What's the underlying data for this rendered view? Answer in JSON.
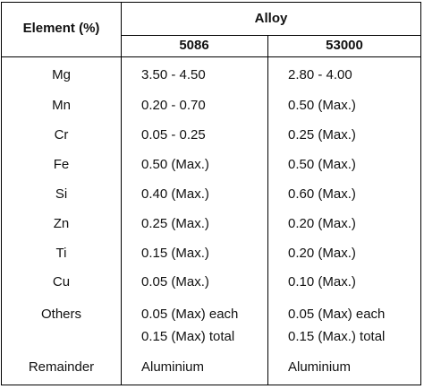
{
  "table": {
    "header": {
      "element_label": "Element (%)",
      "alloy_label": "Alloy",
      "alloys": [
        "5086",
        "53000"
      ]
    },
    "rows": [
      {
        "element": "Mg",
        "a": "3.50 - 4.50",
        "b": "2.80 - 4.00"
      },
      {
        "element": "Mn",
        "a": "0.20 - 0.70",
        "b": "0.50  (Max.)"
      },
      {
        "element": "Cr",
        "a": "0.05 - 0.25",
        "b": "0.25  (Max.)"
      },
      {
        "element": "Fe",
        "a": "0.50  (Max.)",
        "b": "0.50  (Max.)"
      },
      {
        "element": "Si",
        "a": "0.40  (Max.)",
        "b": "0.60  (Max.)"
      },
      {
        "element": "Zn",
        "a": "0.25  (Max.)",
        "b": "0.20  (Max.)"
      },
      {
        "element": "Ti",
        "a": "0.15  (Max.)",
        "b": "0.20  (Max.)"
      },
      {
        "element": "Cu",
        "a": "0.05  (Max.)",
        "b": "0.10  (Max.)"
      }
    ],
    "others": {
      "element": "Others",
      "a_line1": "0.05 (Max) each",
      "a_line2": "0.15 (Max) total",
      "b_line1": "0.05 (Max) each",
      "b_line2": "0.15 (Max.) total"
    },
    "remainder": {
      "element": "Remainder",
      "a": "Aluminium",
      "b": "Aluminium"
    }
  }
}
